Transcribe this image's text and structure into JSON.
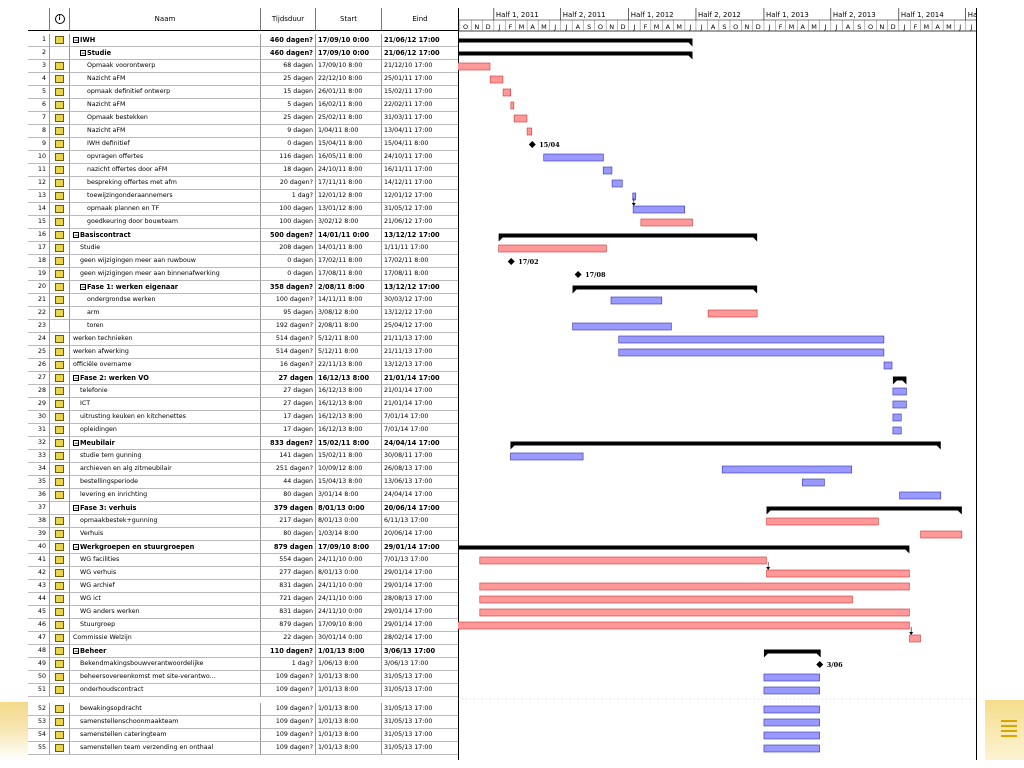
{
  "columns": {
    "name": "Naam",
    "duration": "Tijdsduur",
    "start": "Start",
    "end": "Eind"
  },
  "timeline": {
    "half_labels": [
      "Half 1, 2011",
      "Half 2, 2011",
      "Half 1, 2012",
      "Half 2, 2012",
      "Half 1, 2013",
      "Half 2, 2013",
      "Half 1, 2014",
      "Ha"
    ],
    "month_letters": [
      "O",
      "N",
      "D",
      "J",
      "F",
      "M",
      "A",
      "M",
      "J",
      "J",
      "A",
      "S",
      "O",
      "N",
      "D",
      "J",
      "F",
      "M",
      "A",
      "M",
      "J",
      "J",
      "A",
      "S",
      "O",
      "N",
      "D",
      "J",
      "F",
      "M",
      "A",
      "M",
      "J",
      "J",
      "A",
      "S",
      "O",
      "N",
      "D",
      "J",
      "F",
      "M",
      "A",
      "M",
      "J",
      "J"
    ]
  },
  "colors": {
    "task": "#ff9999",
    "critical": "#9999ff",
    "summary": "#000000",
    "indicator": "#e9d54a"
  },
  "tasks": [
    {
      "id": "1",
      "name": "IWH",
      "duration": "460 dagen?",
      "start": "17/09/10 0:00",
      "end": "21/06/12 17:00",
      "level": 0,
      "summary": true,
      "bold": true,
      "indicator": true
    },
    {
      "id": "2",
      "name": "Studie",
      "duration": "460 dagen?",
      "start": "17/09/10 0:00",
      "end": "21/06/12 17:00",
      "level": 1,
      "summary": true,
      "bold": true,
      "indicator": false
    },
    {
      "id": "3",
      "name": "Opmaak voorontwerp",
      "duration": "68 dagen",
      "start": "17/09/10 8:00",
      "end": "21/12/10 17:00",
      "level": 2,
      "type": "task",
      "indicator": true
    },
    {
      "id": "4",
      "name": "Nazicht aFM",
      "duration": "25 dagen",
      "start": "22/12/10 8:00",
      "end": "25/01/11 17:00",
      "level": 2,
      "type": "task",
      "indicator": true
    },
    {
      "id": "5",
      "name": "opmaak definitief ontwerp",
      "duration": "15 dagen",
      "start": "26/01/11 8:00",
      "end": "15/02/11 17:00",
      "level": 2,
      "type": "task",
      "indicator": true
    },
    {
      "id": "6",
      "name": "Nazicht aFM",
      "duration": "5 dagen",
      "start": "16/02/11 8:00",
      "end": "22/02/11 17:00",
      "level": 2,
      "type": "task",
      "indicator": true
    },
    {
      "id": "7",
      "name": "Opmaak bestekken",
      "duration": "25 dagen",
      "start": "25/02/11 8:00",
      "end": "31/03/11 17:00",
      "level": 2,
      "type": "task",
      "indicator": true
    },
    {
      "id": "8",
      "name": "Nazicht aFM",
      "duration": "9 dagen",
      "start": "1/04/11 8:00",
      "end": "13/04/11 17:00",
      "level": 2,
      "type": "task",
      "indicator": true
    },
    {
      "id": "9",
      "name": "IWH definitief",
      "duration": "0 dagen",
      "start": "15/04/11 8:00",
      "end": "15/04/11 8:00",
      "level": 2,
      "type": "milestone",
      "label": "15/04",
      "indicator": true
    },
    {
      "id": "10",
      "name": "opvragen offertes",
      "duration": "116 dagen",
      "start": "16/05/11 8:00",
      "end": "24/10/11 17:00",
      "level": 2,
      "type": "critical",
      "indicator": true
    },
    {
      "id": "11",
      "name": "nazicht offertes door aFM",
      "duration": "18 dagen",
      "start": "24/10/11 8:00",
      "end": "16/11/11 17:00",
      "level": 2,
      "type": "critical",
      "indicator": true
    },
    {
      "id": "12",
      "name": "bespreking offertes met afm",
      "duration": "20 dagen?",
      "start": "17/11/11 8:00",
      "end": "14/12/11 17:00",
      "level": 2,
      "type": "critical",
      "indicator": true
    },
    {
      "id": "13",
      "name": "toewijzingonderaannemers",
      "duration": "1 dag?",
      "start": "12/01/12 8:00",
      "end": "12/01/12 17:00",
      "level": 2,
      "type": "critical",
      "indicator": true
    },
    {
      "id": "14",
      "name": "opmaak plannen en TF",
      "duration": "100 dagen",
      "start": "13/01/12 8:00",
      "end": "31/05/12 17:00",
      "level": 2,
      "type": "critical",
      "indicator": true
    },
    {
      "id": "15",
      "name": "goedkeuring door bouwteam",
      "duration": "100 dagen",
      "start": "3/02/12 8:00",
      "end": "21/06/12 17:00",
      "level": 2,
      "type": "task",
      "indicator": true
    },
    {
      "id": "16",
      "name": "Basiscontract",
      "duration": "500 dagen?",
      "start": "14/01/11 0:00",
      "end": "13/12/12 17:00",
      "level": 0,
      "summary": true,
      "bold": true,
      "indicator": true
    },
    {
      "id": "17",
      "name": "Studie",
      "duration": "208 dagen",
      "start": "14/01/11 8:00",
      "end": "1/11/11 17:00",
      "level": 1,
      "type": "task",
      "indicator": true
    },
    {
      "id": "18",
      "name": "geen wijzigingen meer aan ruwbouw",
      "duration": "0 dagen",
      "start": "17/02/11 8:00",
      "end": "17/02/11 8:00",
      "level": 1,
      "type": "milestone",
      "label": "17/02",
      "indicator": true
    },
    {
      "id": "19",
      "name": "geen wijzigingen meer aan binnenafwerking",
      "duration": "0 dagen",
      "start": "17/08/11 8:00",
      "end": "17/08/11 8:00",
      "level": 1,
      "type": "milestone",
      "label": "17/08",
      "indicator": true
    },
    {
      "id": "20",
      "name": "Fase 1: werken eigenaar",
      "duration": "358 dagen?",
      "start": "2/08/11 8:00",
      "end": "13/12/12 17:00",
      "level": 1,
      "summary": true,
      "bold": true,
      "indicator": true
    },
    {
      "id": "21",
      "name": "ondergrondse werken",
      "duration": "100 dagen?",
      "start": "14/11/11 8:00",
      "end": "30/03/12 17:00",
      "level": 2,
      "type": "critical",
      "indicator": true
    },
    {
      "id": "22",
      "name": "arm",
      "duration": "95 dagen",
      "start": "3/08/12 8:00",
      "end": "13/12/12 17:00",
      "level": 2,
      "type": "task",
      "indicator": true
    },
    {
      "id": "23",
      "name": "toren",
      "duration": "192 dagen?",
      "start": "2/08/11 8:00",
      "end": "25/04/12 17:00",
      "level": 2,
      "type": "critical",
      "indicator": false
    },
    {
      "id": "24",
      "name": "werken technieken",
      "duration": "514 dagen?",
      "start": "5/12/11 8:00",
      "end": "21/11/13 17:00",
      "level": 0,
      "type": "critical",
      "indicator": true
    },
    {
      "id": "25",
      "name": "werken afwerking",
      "duration": "514 dagen?",
      "start": "5/12/11 8:00",
      "end": "21/11/13 17:00",
      "level": 0,
      "type": "critical",
      "indicator": true
    },
    {
      "id": "26",
      "name": "officiële overname",
      "duration": "16 dagen?",
      "start": "22/11/13 8:00",
      "end": "13/12/13 17:00",
      "level": 0,
      "type": "critical",
      "indicator": true
    },
    {
      "id": "27",
      "name": "Fase 2: werken VO",
      "duration": "27 dagen",
      "start": "16/12/13 8:00",
      "end": "21/01/14 17:00",
      "level": 0,
      "summary": true,
      "bold": true,
      "indicator": true
    },
    {
      "id": "28",
      "name": "telefonie",
      "duration": "27 dagen",
      "start": "16/12/13 8:00",
      "end": "21/01/14 17:00",
      "level": 1,
      "type": "critical",
      "indicator": true
    },
    {
      "id": "29",
      "name": "ICT",
      "duration": "27 dagen",
      "start": "16/12/13 8:00",
      "end": "21/01/14 17:00",
      "level": 1,
      "type": "critical",
      "indicator": true
    },
    {
      "id": "30",
      "name": "uitrusting keuken en kitchenettes",
      "duration": "17 dagen",
      "start": "16/12/13 8:00",
      "end": "7/01/14 17:00",
      "level": 1,
      "type": "critical",
      "indicator": true
    },
    {
      "id": "31",
      "name": "opleidingen",
      "duration": "17 dagen",
      "start": "16/12/13 8:00",
      "end": "7/01/14 17:00",
      "level": 1,
      "type": "critical",
      "indicator": true
    },
    {
      "id": "32",
      "name": "Meubilair",
      "duration": "833 dagen?",
      "start": "15/02/11 8:00",
      "end": "24/04/14 17:00",
      "level": 0,
      "summary": true,
      "bold": true,
      "indicator": true
    },
    {
      "id": "33",
      "name": "studie tem gunning",
      "duration": "141 dagen",
      "start": "15/02/11 8:00",
      "end": "30/08/11 17:00",
      "level": 1,
      "type": "critical",
      "indicator": true
    },
    {
      "id": "34",
      "name": "archieven en alg zitmeubilair",
      "duration": "251 dagen?",
      "start": "10/09/12 8:00",
      "end": "26/08/13 17:00",
      "level": 1,
      "type": "critical",
      "indicator": true
    },
    {
      "id": "35",
      "name": "bestellingsperiode",
      "duration": "44 dagen",
      "start": "15/04/13 8:00",
      "end": "13/06/13 17:00",
      "level": 1,
      "type": "critical",
      "indicator": true
    },
    {
      "id": "36",
      "name": "levering en inrichting",
      "duration": "80 dagen",
      "start": "3/01/14 8:00",
      "end": "24/04/14 17:00",
      "level": 1,
      "type": "critical",
      "indicator": true
    },
    {
      "id": "37",
      "name": "Fase 3: verhuis",
      "duration": "379 dagen",
      "start": "8/01/13 0:00",
      "end": "20/06/14 17:00",
      "level": 0,
      "summary": true,
      "bold": true,
      "indicator": false
    },
    {
      "id": "38",
      "name": "opmaakbestek+gunning",
      "duration": "217 dagen",
      "start": "8/01/13 0:00",
      "end": "6/11/13 17:00",
      "level": 1,
      "type": "task",
      "indicator": true
    },
    {
      "id": "39",
      "name": "Verhuis",
      "duration": "80 dagen",
      "start": "1/03/14 8:00",
      "end": "20/06/14 17:00",
      "level": 1,
      "type": "task",
      "indicator": true
    },
    {
      "id": "40",
      "name": "Werkgroepen en stuurgroepen",
      "duration": "879 dagen",
      "start": "17/09/10 8:00",
      "end": "29/01/14 17:00",
      "level": 0,
      "summary": true,
      "bold": true,
      "indicator": true
    },
    {
      "id": "41",
      "name": "WG facilities",
      "duration": "554 dagen",
      "start": "24/11/10 0:00",
      "end": "7/01/13 17:00",
      "level": 1,
      "type": "task",
      "indicator": true
    },
    {
      "id": "42",
      "name": "WG verhuis",
      "duration": "277 dagen",
      "start": "8/01/13 0:00",
      "end": "29/01/14 17:00",
      "level": 1,
      "type": "task",
      "indicator": true
    },
    {
      "id": "43",
      "name": "WG archief",
      "duration": "831 dagen",
      "start": "24/11/10 0:00",
      "end": "29/01/14 17:00",
      "level": 1,
      "type": "task",
      "indicator": true
    },
    {
      "id": "44",
      "name": "WG ict",
      "duration": "721 dagen",
      "start": "24/11/10 0:00",
      "end": "28/08/13 17:00",
      "level": 1,
      "type": "task",
      "indicator": true
    },
    {
      "id": "45",
      "name": "WG anders werken",
      "duration": "831 dagen",
      "start": "24/11/10 0:00",
      "end": "29/01/14 17:00",
      "level": 1,
      "type": "task",
      "indicator": true
    },
    {
      "id": "46",
      "name": "Stuurgroep",
      "duration": "879 dagen",
      "start": "17/09/10 8:00",
      "end": "29/01/14 17:00",
      "level": 1,
      "type": "task",
      "indicator": true
    },
    {
      "id": "47",
      "name": "Commissie Welzijn",
      "duration": "22 dagen",
      "start": "30/01/14 0:00",
      "end": "28/02/14 17:00",
      "level": 0,
      "type": "task",
      "indicator": true
    },
    {
      "id": "48",
      "name": "Beheer",
      "duration": "110 dagen?",
      "start": "1/01/13 8:00",
      "end": "3/06/13 17:00",
      "level": 0,
      "summary": true,
      "bold": true,
      "indicator": true
    },
    {
      "id": "49",
      "name": "Bekendmakingsbouwverantwoordelijke",
      "duration": "1 dag?",
      "start": "1/06/13 8:00",
      "end": "3/06/13 17:00",
      "level": 1,
      "type": "milestone",
      "label": "3/06",
      "indicator": true
    },
    {
      "id": "50",
      "name": "beheersovereenkomst met site-verantwo...",
      "duration": "109 dagen?",
      "start": "1/01/13 8:00",
      "end": "31/05/13 17:00",
      "level": 1,
      "type": "critical",
      "indicator": true
    },
    {
      "id": "51",
      "name": "onderhoudscontract",
      "duration": "109 dagen?",
      "start": "1/01/13 8:00",
      "end": "31/05/13 17:00",
      "level": 1,
      "type": "critical",
      "indicator": true
    },
    {
      "id": "52",
      "name": "bewakingsopdracht",
      "duration": "109 dagen?",
      "start": "1/01/13 8:00",
      "end": "31/05/13 17:00",
      "level": 1,
      "type": "critical",
      "indicator": true
    },
    {
      "id": "53",
      "name": "samenstellenschoonmaakteam",
      "duration": "109 dagen?",
      "start": "1/01/13 8:00",
      "end": "31/05/13 17:00",
      "level": 1,
      "type": "critical",
      "indicator": true
    },
    {
      "id": "54",
      "name": "samenstellen cateringteam",
      "duration": "109 dagen?",
      "start": "1/01/13 8:00",
      "end": "31/05/13 17:00",
      "level": 1,
      "type": "critical",
      "indicator": true
    },
    {
      "id": "55",
      "name": "samenstellen team verzending en onthaal",
      "duration": "109 dagen?",
      "start": "1/01/13 8:00",
      "end": "31/05/13 17:00",
      "level": 1,
      "type": "critical",
      "indicator": true
    }
  ]
}
